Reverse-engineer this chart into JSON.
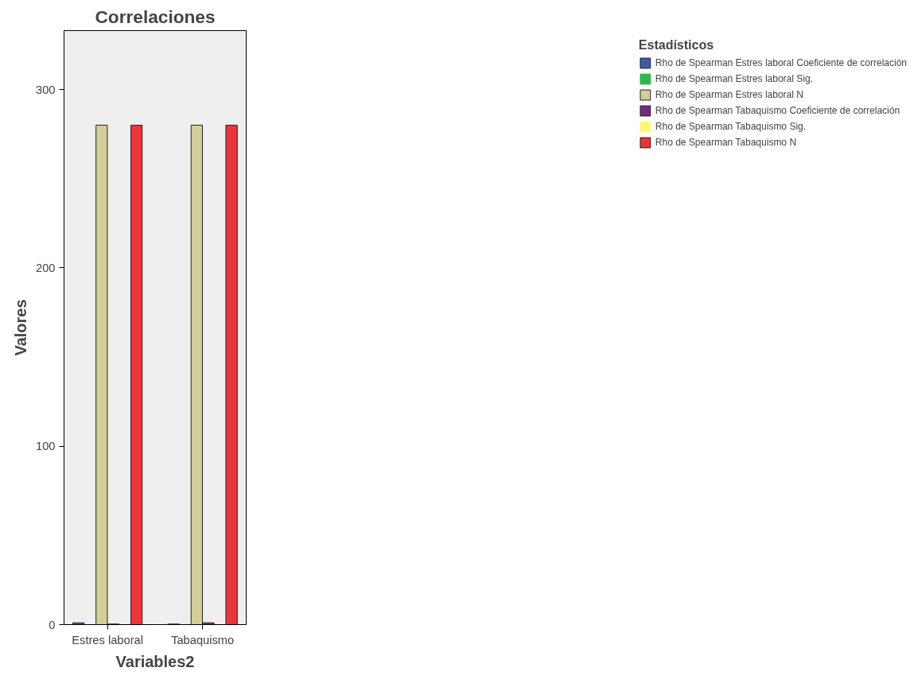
{
  "chart_data": {
    "type": "bar",
    "title": "Correlaciones",
    "xlabel": "Variables2",
    "ylabel": "Valores",
    "legend_title": "Estadísticos",
    "categories": [
      "Estres laboral",
      "Tabaquismo"
    ],
    "series": [
      {
        "name": "Rho de Spearman Estres laboral Coeficiente de correlación",
        "color": "#3e58ac",
        "values": [
          1,
          0.3
        ]
      },
      {
        "name": "Rho de Spearman Estres laboral Sig.",
        "color": "#2eb848",
        "values": [
          0,
          0
        ]
      },
      {
        "name": "Rho de Spearman Estres laboral N",
        "color": "#d3ce97",
        "values": [
          280,
          280
        ]
      },
      {
        "name": "Rho de Spearman Tabaquismo Coeficiente de correlación",
        "color": "#79287c",
        "values": [
          0.3,
          1
        ]
      },
      {
        "name": "Rho de Spearman Tabaquismo Sig.",
        "color": "#fbf873",
        "values": [
          0,
          0
        ]
      },
      {
        "name": "Rho de Spearman Tabaquismo N",
        "color": "#ef333a",
        "values": [
          280,
          280
        ]
      }
    ],
    "ylim": [
      0,
      333
    ],
    "yticks": [
      0,
      100,
      200,
      300
    ],
    "grid": false,
    "legend": "right"
  }
}
